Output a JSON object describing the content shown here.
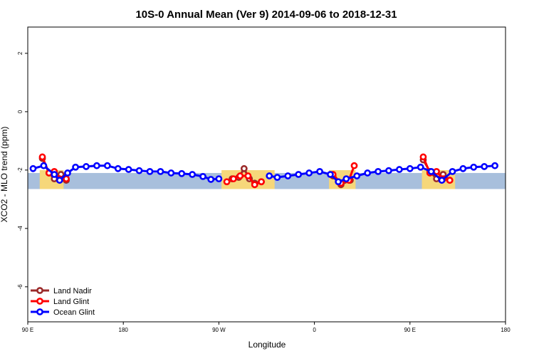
{
  "chart_data": {
    "type": "line",
    "title": "10S-0 Annual Mean (Ver 9)   2014-09-06 to 2018-12-31",
    "xlabel": "Longitude",
    "ylabel": "XCO2 - MLO trend (ppm)",
    "xlim": [
      90,
      450
    ],
    "ylim": [
      -7.2,
      2.9
    ],
    "x_ticks": [
      {
        "value": 90,
        "label": "90 E"
      },
      {
        "value": 162,
        "label": "180"
      },
      {
        "value": 234,
        "label": "90 W"
      },
      {
        "value": 306,
        "label": "0"
      },
      {
        "value": 378,
        "label": "90 E"
      },
      {
        "value": 450,
        "label": "180"
      }
    ],
    "y_ticks": [
      {
        "value": 2,
        "label": "2"
      },
      {
        "value": 0,
        "label": "0"
      },
      {
        "value": -2,
        "label": "-2"
      },
      {
        "value": -4,
        "label": "-4"
      },
      {
        "value": -6,
        "label": "-6"
      }
    ],
    "band": {
      "y_top": -2.1,
      "y_bottom": -2.65,
      "color": "#a8bfdc"
    },
    "land_color": "#f6d77a",
    "land_patches": [
      {
        "x": [
          99,
          117
        ],
        "label": ""
      },
      {
        "x": [
          236,
          276
        ],
        "label": ""
      },
      {
        "x": [
          317,
          337
        ],
        "label": ""
      },
      {
        "x": [
          387,
          412
        ],
        "label": ""
      }
    ],
    "legend": {
      "position": "bottom-left"
    },
    "series": [
      {
        "name": "Land Nadir",
        "color": "#9b2a2a",
        "points": [
          [
            101,
            -1.6
          ],
          [
            106,
            -2.1
          ],
          [
            110,
            -2.3
          ],
          [
            115,
            -2.15
          ],
          [
            119,
            -2.35
          ],
          [
            244,
            -2.3
          ],
          [
            249,
            -2.25
          ],
          [
            253,
            -1.95
          ],
          [
            257,
            -2.3
          ],
          [
            261,
            -2.45
          ],
          [
            266,
            -2.4
          ],
          [
            320,
            -2.2
          ],
          [
            326,
            -2.5
          ],
          [
            333,
            -2.35
          ],
          [
            388,
            -1.65
          ],
          [
            393,
            -2.05
          ],
          [
            398,
            -2.3
          ],
          [
            403,
            -2.15
          ],
          [
            408,
            -2.35
          ]
        ]
      },
      {
        "name": "Land Glint",
        "color": "#ff0000",
        "points": [
          [
            101,
            -1.55
          ],
          [
            106,
            -2.1
          ],
          [
            110,
            -2.05
          ],
          [
            114,
            -2.3
          ],
          [
            119,
            -2.3
          ],
          [
            240,
            -2.4
          ],
          [
            245,
            -2.3
          ],
          [
            250,
            -2.2
          ],
          [
            256,
            -2.2
          ],
          [
            261,
            -2.5
          ],
          [
            266,
            -2.4
          ],
          [
            320,
            -2.15
          ],
          [
            326,
            -2.45
          ],
          [
            332,
            -2.35
          ],
          [
            336,
            -1.85
          ],
          [
            388,
            -1.55
          ],
          [
            393,
            -2.1
          ],
          [
            398,
            -2.05
          ],
          [
            403,
            -2.3
          ],
          [
            408,
            -2.35
          ]
        ]
      },
      {
        "name": "Ocean Glint",
        "color": "#0000ff",
        "points": [
          [
            94,
            -1.95
          ],
          [
            102,
            -1.85
          ],
          [
            110,
            -2.15
          ],
          [
            114,
            -2.35
          ],
          [
            120,
            -2.1
          ],
          [
            126,
            -1.9
          ],
          [
            134,
            -1.88
          ],
          [
            142,
            -1.85
          ],
          [
            150,
            -1.85
          ],
          [
            158,
            -1.95
          ],
          [
            166,
            -1.98
          ],
          [
            174,
            -2.02
          ],
          [
            182,
            -2.05
          ],
          [
            190,
            -2.05
          ],
          [
            198,
            -2.1
          ],
          [
            206,
            -2.12
          ],
          [
            214,
            -2.15
          ],
          [
            222,
            -2.22
          ],
          [
            228,
            -2.32
          ],
          [
            234,
            -2.3
          ],
          [
            272,
            -2.2
          ],
          [
            278,
            -2.25
          ],
          [
            286,
            -2.2
          ],
          [
            294,
            -2.15
          ],
          [
            302,
            -2.1
          ],
          [
            310,
            -2.05
          ],
          [
            318,
            -2.15
          ],
          [
            324,
            -2.4
          ],
          [
            330,
            -2.3
          ],
          [
            338,
            -2.2
          ],
          [
            346,
            -2.1
          ],
          [
            354,
            -2.05
          ],
          [
            362,
            -2.02
          ],
          [
            370,
            -1.98
          ],
          [
            378,
            -1.95
          ],
          [
            386,
            -1.9
          ],
          [
            394,
            -2.05
          ],
          [
            402,
            -2.35
          ],
          [
            410,
            -2.05
          ],
          [
            418,
            -1.95
          ],
          [
            426,
            -1.9
          ],
          [
            434,
            -1.88
          ],
          [
            442,
            -1.85
          ]
        ]
      }
    ]
  }
}
